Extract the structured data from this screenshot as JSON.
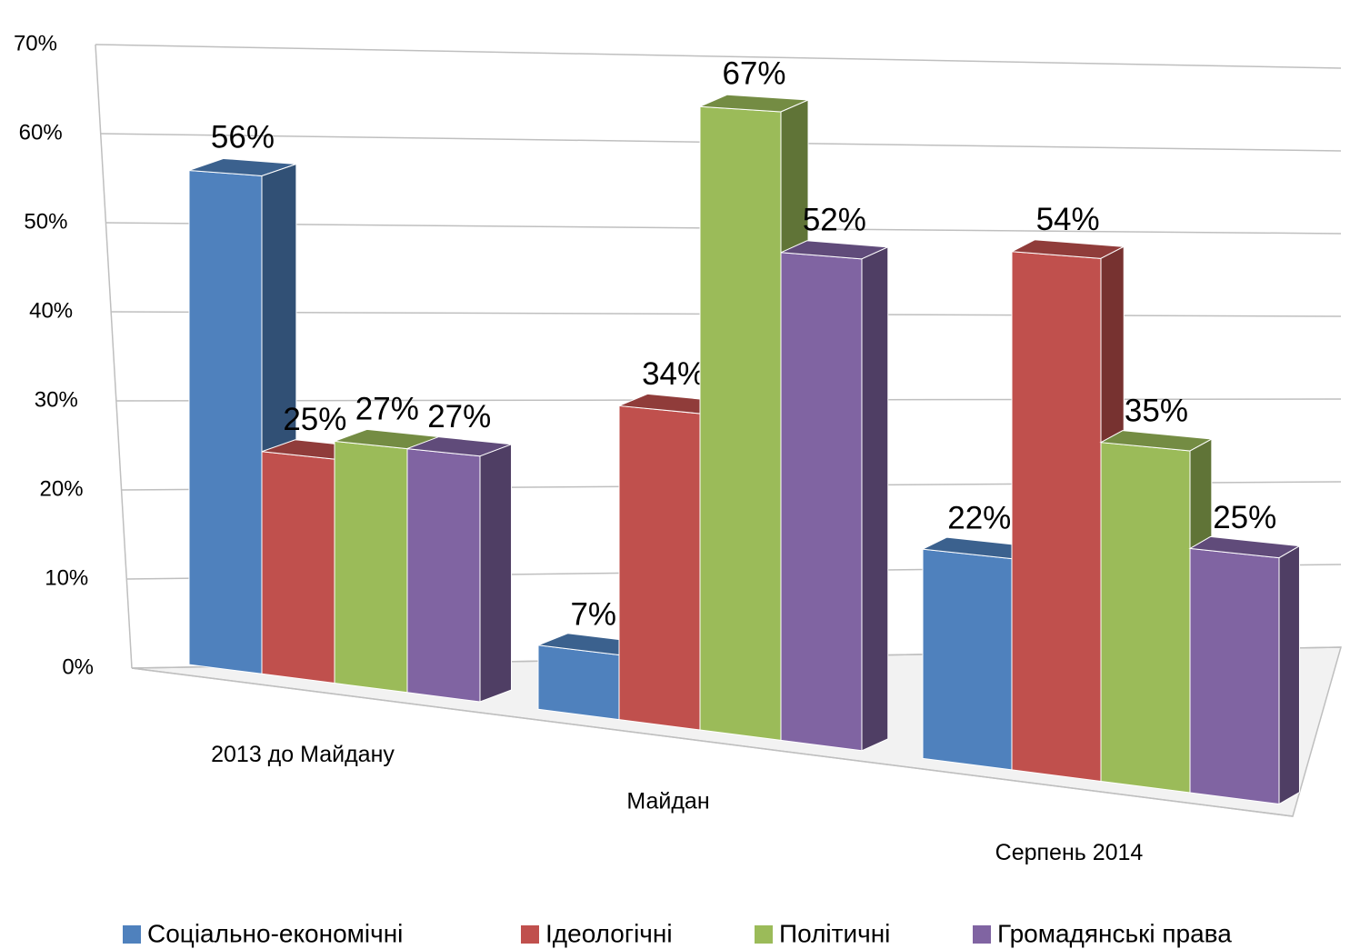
{
  "chart_data": {
    "type": "bar3d",
    "categories": [
      "2013 до Майдану",
      "Майдан",
      "Серпень 2014"
    ],
    "series": [
      {
        "name": "Соціально-економічні",
        "color": "#4f81bd",
        "values": [
          56,
          7,
          22
        ],
        "value_labels": [
          "56%",
          "7%",
          "22%"
        ]
      },
      {
        "name": "Ідеологічні",
        "color": "#c0504d",
        "values": [
          25,
          34,
          54
        ],
        "value_labels": [
          "25%",
          "34%",
          "54%"
        ]
      },
      {
        "name": "Політичні",
        "color": "#9bbb59",
        "values": [
          27,
          67,
          35
        ],
        "value_labels": [
          "27%",
          "67%",
          "35%"
        ]
      },
      {
        "name": "Громадянські права",
        "color": "#8064a2",
        "values": [
          27,
          52,
          25
        ],
        "value_labels": [
          "27%",
          "52%",
          "25%"
        ]
      }
    ],
    "ylim": [
      0,
      70
    ],
    "yticks": [
      {
        "value": 0,
        "label": "0%"
      },
      {
        "value": 10,
        "label": "10%"
      },
      {
        "value": 20,
        "label": "20%"
      },
      {
        "value": 30,
        "label": "30%"
      },
      {
        "value": 40,
        "label": "40%"
      },
      {
        "value": 50,
        "label": "50%"
      },
      {
        "value": 60,
        "label": "60%"
      },
      {
        "value": 70,
        "label": "70%"
      }
    ],
    "grid": true,
    "legend": "bottom"
  }
}
